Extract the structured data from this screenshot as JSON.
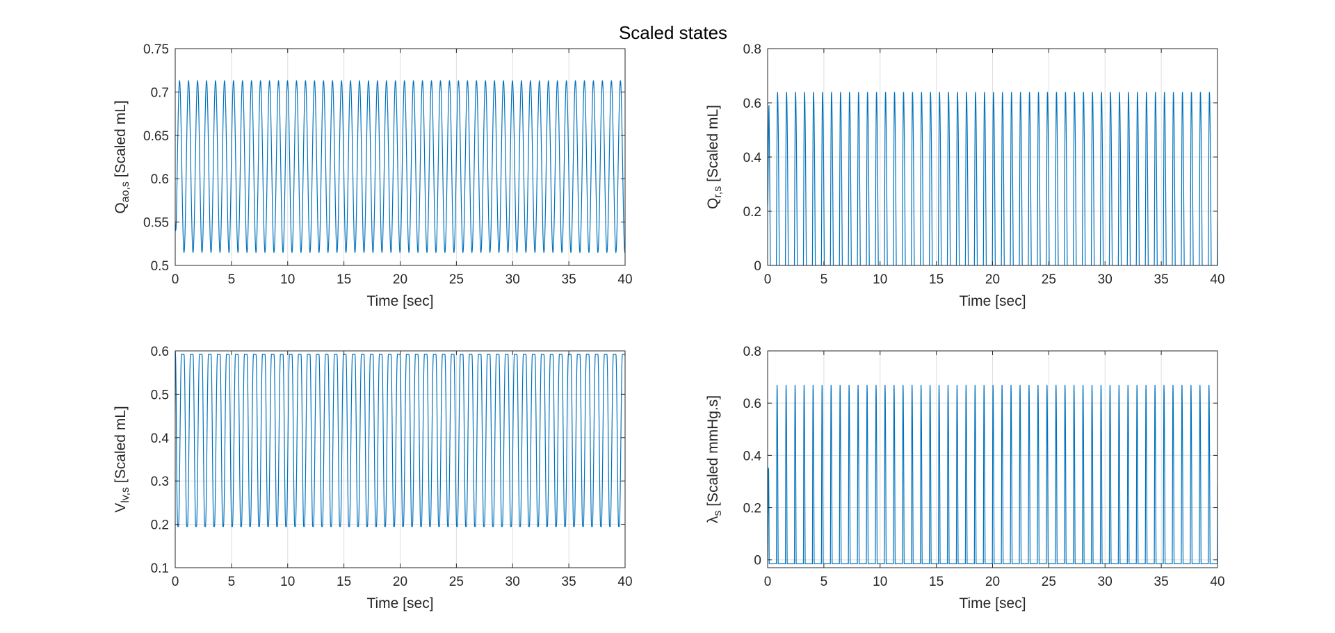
{
  "figure": {
    "title": "Scaled states"
  },
  "chart_data": [
    {
      "type": "line",
      "id": "q-ao",
      "xlabel": "Time [sec]",
      "ylabel_main": "Q",
      "ylabel_sub": "ao,s",
      "ylabel_rest": " [Scaled mL]",
      "xlim": [
        0,
        40
      ],
      "ylim": [
        0.5,
        0.75
      ],
      "xticks": [
        0,
        5,
        10,
        15,
        20,
        25,
        30,
        35,
        40
      ],
      "xtick_labels": [
        "0",
        "5",
        "10",
        "15",
        "20",
        "25",
        "30",
        "35",
        "40"
      ],
      "yticks": [
        0.5,
        0.55,
        0.6,
        0.65,
        0.7,
        0.75
      ],
      "ytick_labels": [
        "0.5",
        "0.55",
        "0.6",
        "0.65",
        "0.7",
        "0.75"
      ],
      "grid": true,
      "series": [
        {
          "color": "#0072BD",
          "waveform": "sinusoidal",
          "period_sec": 0.8,
          "min": 0.515,
          "max": 0.713,
          "start_value": 0.55
        }
      ]
    },
    {
      "type": "line",
      "id": "q-r",
      "xlabel": "Time [sec]",
      "ylabel_main": "Q",
      "ylabel_sub": "r,s",
      "ylabel_rest": " [Scaled mL]",
      "xlim": [
        0,
        40
      ],
      "ylim": [
        0,
        0.8
      ],
      "xticks": [
        0,
        5,
        10,
        15,
        20,
        25,
        30,
        35,
        40
      ],
      "xtick_labels": [
        "0",
        "5",
        "10",
        "15",
        "20",
        "25",
        "30",
        "35",
        "40"
      ],
      "yticks": [
        0,
        0.2,
        0.4,
        0.6,
        0.8
      ],
      "ytick_labels": [
        "0",
        "0.2",
        "0.4",
        "0.6",
        "0.8"
      ],
      "grid": true,
      "series": [
        {
          "color": "#0072BD",
          "waveform": "pulse",
          "period_sec": 0.8,
          "min": 0.0,
          "max": 0.64,
          "start_value": 0.22
        }
      ]
    },
    {
      "type": "line",
      "id": "v-lv",
      "xlabel": "Time [sec]",
      "ylabel_main": "V",
      "ylabel_sub": "lv,s",
      "ylabel_rest": " [Scaled mL]",
      "xlim": [
        0,
        40
      ],
      "ylim": [
        0.1,
        0.6
      ],
      "xticks": [
        0,
        5,
        10,
        15,
        20,
        25,
        30,
        35,
        40
      ],
      "xtick_labels": [
        "0",
        "5",
        "10",
        "15",
        "20",
        "25",
        "30",
        "35",
        "40"
      ],
      "yticks": [
        0.1,
        0.2,
        0.3,
        0.4,
        0.5,
        0.6
      ],
      "ytick_labels": [
        "0.1",
        "0.2",
        "0.3",
        "0.4",
        "0.5",
        "0.6"
      ],
      "grid": true,
      "series": [
        {
          "color": "#0072BD",
          "waveform": "flat-top",
          "period_sec": 0.8,
          "min": 0.195,
          "max": 0.592,
          "start_value": 0.6
        }
      ]
    },
    {
      "type": "line",
      "id": "lambda",
      "xlabel": "Time [sec]",
      "ylabel_main": "λ",
      "ylabel_sub": "s",
      "ylabel_rest": " [Scaled mmHg.s]",
      "xlim": [
        0,
        40
      ],
      "ylim": [
        -0.03,
        0.8
      ],
      "xticks": [
        0,
        5,
        10,
        15,
        20,
        25,
        30,
        35,
        40
      ],
      "xtick_labels": [
        "0",
        "5",
        "10",
        "15",
        "20",
        "25",
        "30",
        "35",
        "40"
      ],
      "yticks": [
        0,
        0.2,
        0.4,
        0.6,
        0.8
      ],
      "ytick_labels": [
        "0",
        "0.2",
        "0.4",
        "0.6",
        "0.8"
      ],
      "grid": true,
      "series": [
        {
          "color": "#0072BD",
          "waveform": "narrow-pulse",
          "period_sec": 0.8,
          "min": -0.015,
          "max": 0.67,
          "start_value": 0.0
        }
      ]
    }
  ]
}
